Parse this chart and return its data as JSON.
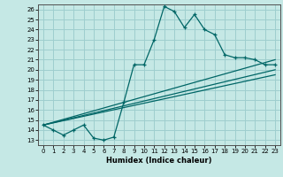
{
  "title": "",
  "xlabel": "Humidex (Indice chaleur)",
  "bg_color": "#c5e8e5",
  "grid_color": "#9ecece",
  "line_color": "#006666",
  "xlim": [
    -0.5,
    23.5
  ],
  "ylim": [
    12.5,
    26.5
  ],
  "xticks": [
    0,
    1,
    2,
    3,
    4,
    5,
    6,
    7,
    8,
    9,
    10,
    11,
    12,
    13,
    14,
    15,
    16,
    17,
    18,
    19,
    20,
    21,
    22,
    23
  ],
  "yticks": [
    13,
    14,
    15,
    16,
    17,
    18,
    19,
    20,
    21,
    22,
    23,
    24,
    25,
    26
  ],
  "line1_x": [
    0,
    1,
    2,
    3,
    4,
    5,
    6,
    7,
    8,
    9,
    10,
    11,
    12,
    13,
    14,
    15,
    16,
    17,
    18,
    19,
    20,
    21,
    22,
    23
  ],
  "line1_y": [
    14.5,
    14.0,
    13.5,
    14.0,
    14.5,
    13.2,
    13.0,
    13.3,
    16.8,
    20.5,
    20.5,
    23.0,
    26.3,
    25.8,
    24.2,
    25.5,
    24.0,
    23.5,
    21.5,
    21.2,
    21.2,
    21.0,
    20.5,
    20.5
  ],
  "line2_x": [
    0,
    23
  ],
  "line2_y": [
    14.5,
    21.0
  ],
  "line3_x": [
    0,
    23
  ],
  "line3_y": [
    14.5,
    20.0
  ],
  "line4_x": [
    0,
    23
  ],
  "line4_y": [
    14.5,
    19.5
  ]
}
